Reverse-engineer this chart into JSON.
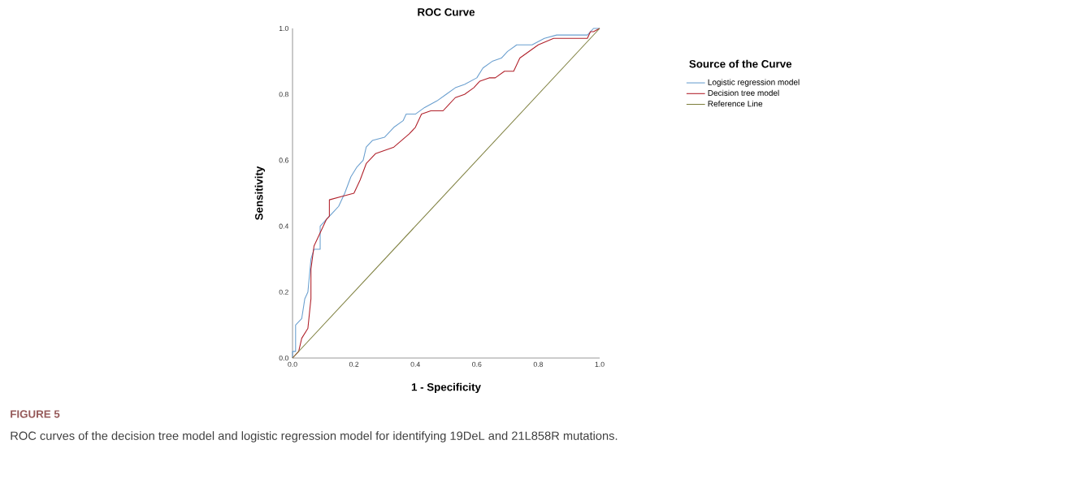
{
  "chart_data": {
    "type": "line",
    "title": "ROC Curve",
    "xlabel": "1 - Specificity",
    "ylabel": "Sensitivity",
    "legend_title": "Source of the Curve",
    "legend": "right",
    "grid": false,
    "marker": "none",
    "line_style": "solid",
    "xlim": [
      0,
      1
    ],
    "ylim": [
      0,
      1
    ],
    "xticks": [
      {
        "value": 0,
        "label": "0.0"
      },
      {
        "value": 0.2,
        "label": "0.2"
      },
      {
        "value": 0.4,
        "label": "0.4"
      },
      {
        "value": 0.6,
        "label": "0.6"
      },
      {
        "value": 0.8,
        "label": "0.8"
      },
      {
        "value": 1,
        "label": "1.0"
      }
    ],
    "yticks": [
      {
        "value": 0,
        "label": "0.0"
      },
      {
        "value": 0.2,
        "label": "0.2"
      },
      {
        "value": 0.4,
        "label": "0.4"
      },
      {
        "value": 0.6,
        "label": "0.6"
      },
      {
        "value": 0.8,
        "label": "0.8"
      },
      {
        "value": 1,
        "label": "1.0"
      }
    ],
    "series": [
      {
        "name": "Logistic regression model",
        "color": "#6a9fcf",
        "x": [
          0,
          0,
          0.01,
          0.01,
          0.03,
          0.04,
          0.05,
          0.06,
          0.07,
          0.09,
          0.09,
          0.11,
          0.13,
          0.15,
          0.17,
          0.19,
          0.21,
          0.23,
          0.24,
          0.26,
          0.3,
          0.33,
          0.36,
          0.37,
          0.4,
          0.43,
          0.47,
          0.5,
          0.53,
          0.56,
          0.6,
          0.62,
          0.65,
          0.68,
          0.7,
          0.73,
          0.78,
          0.82,
          0.86,
          0.96,
          0.98,
          1
        ],
        "values": [
          0,
          0.02,
          0.02,
          0.1,
          0.12,
          0.18,
          0.2,
          0.3,
          0.33,
          0.33,
          0.4,
          0.42,
          0.44,
          0.46,
          0.5,
          0.55,
          0.58,
          0.6,
          0.64,
          0.66,
          0.67,
          0.7,
          0.72,
          0.74,
          0.74,
          0.76,
          0.78,
          0.8,
          0.82,
          0.83,
          0.85,
          0.88,
          0.9,
          0.91,
          0.93,
          0.95,
          0.95,
          0.97,
          0.98,
          0.98,
          1,
          1
        ]
      },
      {
        "name": "Decision tree model",
        "color": "#b0202a",
        "x": [
          0,
          0.02,
          0.03,
          0.05,
          0.06,
          0.06,
          0.07,
          0.09,
          0.11,
          0.12,
          0.12,
          0.16,
          0.2,
          0.22,
          0.24,
          0.27,
          0.33,
          0.38,
          0.4,
          0.42,
          0.45,
          0.49,
          0.51,
          0.53,
          0.56,
          0.59,
          0.61,
          0.64,
          0.66,
          0.69,
          0.72,
          0.74,
          0.8,
          0.85,
          0.96,
          0.97,
          0.98,
          1
        ],
        "values": [
          0,
          0.02,
          0.06,
          0.09,
          0.18,
          0.27,
          0.34,
          0.38,
          0.42,
          0.43,
          0.48,
          0.49,
          0.5,
          0.54,
          0.59,
          0.62,
          0.64,
          0.68,
          0.7,
          0.74,
          0.75,
          0.75,
          0.77,
          0.79,
          0.8,
          0.82,
          0.84,
          0.85,
          0.85,
          0.87,
          0.87,
          0.91,
          0.95,
          0.97,
          0.97,
          0.99,
          0.99,
          1
        ]
      },
      {
        "name": "Reference Line",
        "color": "#7f8040",
        "x": [
          0,
          1
        ],
        "values": [
          0,
          1
        ]
      }
    ],
    "annotations": [
      "FIGURE 5",
      "ROC curves of the decision tree model and logistic regression model for identifying 19DeL and 21L858R mutations."
    ]
  }
}
